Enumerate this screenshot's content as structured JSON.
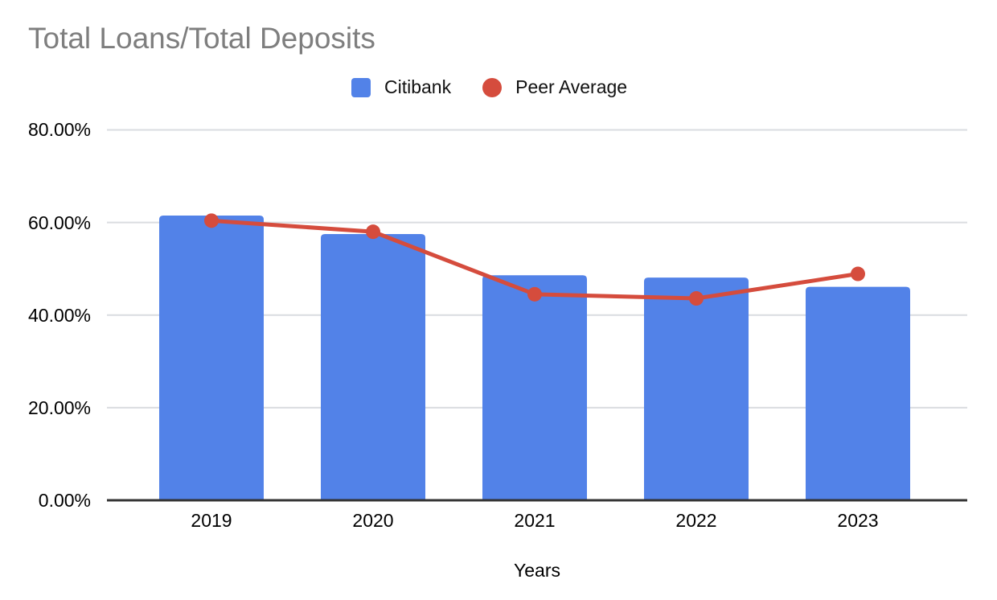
{
  "chart_data": {
    "type": "bar",
    "subtype": "combo-bar-line",
    "title": "Total Loans/Total Deposits",
    "xlabel": "Years",
    "ylabel": "",
    "unit": "percent",
    "categories": [
      "2019",
      "2020",
      "2021",
      "2022",
      "2023"
    ],
    "series": [
      {
        "name": "Citibank",
        "mark": "bar",
        "color": "#5282E8",
        "values": [
          61.5,
          57.5,
          48.6,
          48.1,
          46.1
        ]
      },
      {
        "name": "Peer Average",
        "mark": "line",
        "color": "#D54C3D",
        "values": [
          60.4,
          58.0,
          44.5,
          43.6,
          48.9
        ]
      }
    ],
    "ylim": [
      0,
      80
    ],
    "y_ticks": [
      0,
      20,
      40,
      60,
      80
    ],
    "y_tick_labels": [
      "0.00%",
      "20.00%",
      "40.00%",
      "60.00%",
      "80.00%"
    ],
    "grid": "horizontal",
    "legend_position": "top",
    "colors": {
      "title_text": "#7e7e7e",
      "axis_text": "#000000",
      "gridline": "#dadce0",
      "baseline": "#333333",
      "background": "#ffffff"
    }
  }
}
